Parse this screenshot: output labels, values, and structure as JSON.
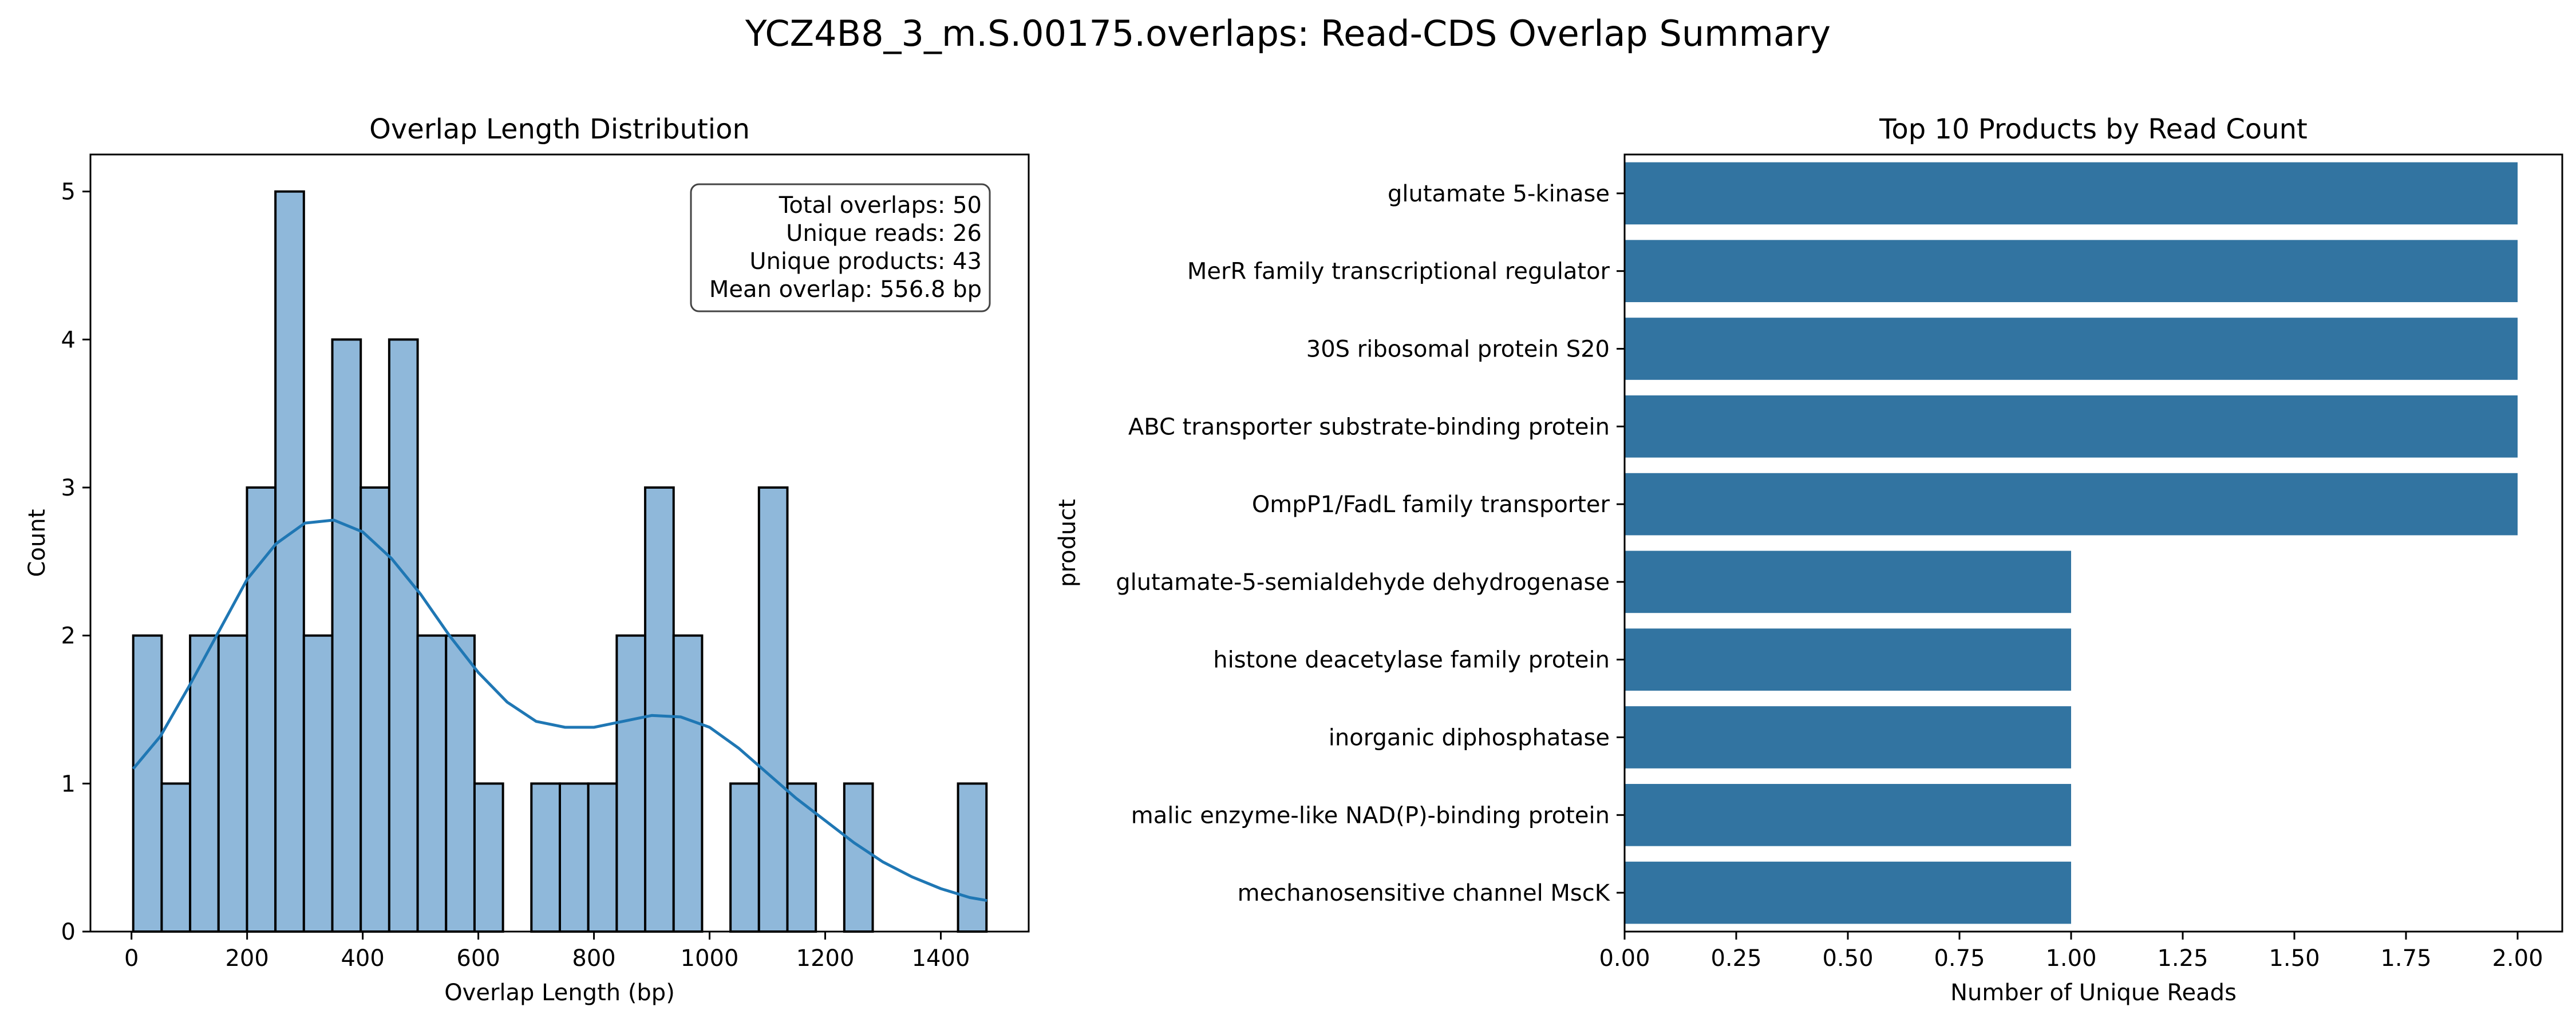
{
  "figure": {
    "title": "YCZ4B8_3_m.S.00175.overlaps: Read-CDS Overlap Summary"
  },
  "chart_data": [
    {
      "type": "bar",
      "subtype": "histogram",
      "title": "Overlap Length Distribution",
      "xlabel": "Overlap Length (bp)",
      "ylabel": "Count",
      "xlim": [
        -71,
        1552
      ],
      "ylim": [
        0,
        5.25
      ],
      "xticks": [
        0,
        200,
        400,
        600,
        800,
        1000,
        1200,
        1400
      ],
      "yticks": [
        0,
        1,
        2,
        3,
        4,
        5
      ],
      "grid": false,
      "bin_start": 3,
      "bin_width": 49.2,
      "counts": [
        2,
        1,
        2,
        2,
        3,
        5,
        2,
        4,
        3,
        4,
        2,
        2,
        1,
        0,
        1,
        1,
        1,
        2,
        3,
        2,
        0,
        1,
        3,
        1,
        0,
        1,
        0,
        0,
        0,
        1
      ],
      "bar_color": "#8fb8da",
      "edge_color": "#000000",
      "kde": {
        "color": "#1f77b4",
        "x": [
          3,
          50,
          100,
          150,
          200,
          250,
          300,
          350,
          400,
          450,
          500,
          550,
          600,
          650,
          700,
          750,
          800,
          850,
          900,
          950,
          1000,
          1050,
          1100,
          1150,
          1200,
          1250,
          1300,
          1350,
          1400,
          1450,
          1480
        ],
        "y": [
          1.1,
          1.32,
          1.66,
          2.02,
          2.38,
          2.62,
          2.76,
          2.78,
          2.7,
          2.52,
          2.28,
          2.0,
          1.75,
          1.55,
          1.42,
          1.38,
          1.38,
          1.42,
          1.46,
          1.45,
          1.38,
          1.24,
          1.07,
          0.9,
          0.75,
          0.6,
          0.47,
          0.37,
          0.29,
          0.23,
          0.21
        ]
      },
      "annotation": {
        "placement": "top-right",
        "lines": [
          "Total overlaps: 50",
          "Unique reads: 26",
          "Unique products: 43",
          "Mean overlap: 556.8 bp"
        ]
      }
    },
    {
      "type": "bar",
      "orientation": "horizontal",
      "title": "Top 10 Products by Read Count",
      "xlabel": "Number of Unique Reads",
      "ylabel": "product",
      "xlim": [
        0,
        2.1
      ],
      "xticks": [
        "0.00",
        "0.25",
        "0.50",
        "0.75",
        "1.00",
        "1.25",
        "1.50",
        "1.75",
        "2.00"
      ],
      "grid": false,
      "bar_color": "#3274a1",
      "categories": [
        "glutamate 5-kinase",
        "MerR family transcriptional regulator",
        "30S ribosomal protein S20",
        "ABC transporter substrate-binding protein",
        "OmpP1/FadL family transporter",
        "glutamate-5-semialdehyde dehydrogenase",
        "histone deacetylase family protein",
        "inorganic diphosphatase",
        "malic enzyme-like NAD(P)-binding protein",
        "mechanosensitive channel MscK"
      ],
      "values": [
        2,
        2,
        2,
        2,
        2,
        1,
        1,
        1,
        1,
        1
      ]
    }
  ]
}
